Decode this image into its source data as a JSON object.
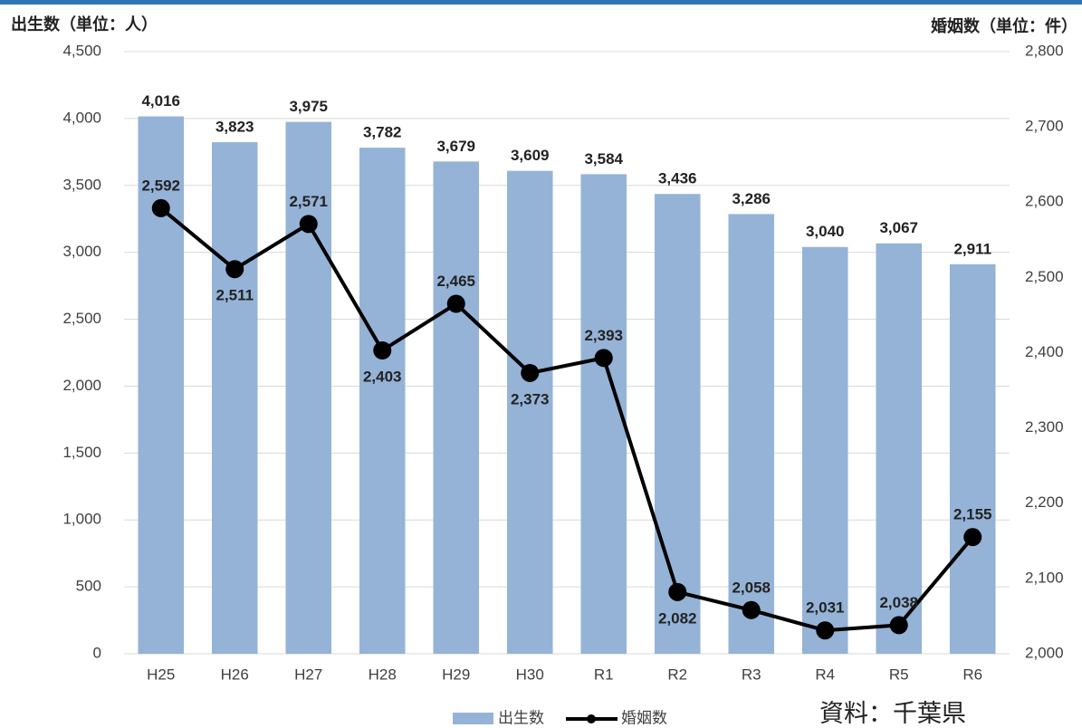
{
  "chart_data": {
    "type": "bar_line",
    "y_axis_label": "出生数（単位：人）",
    "y2_axis_label": "婚姻数（単位：件）",
    "source": "資料：千葉県",
    "categories": [
      "H25",
      "H26",
      "H27",
      "H28",
      "H29",
      "H30",
      "R1",
      "R2",
      "R3",
      "R4",
      "R5",
      "R6"
    ],
    "series": [
      {
        "name": "出生数",
        "type": "bar",
        "color": "#95b3d7",
        "values": [
          4016,
          3823,
          3975,
          3782,
          3679,
          3609,
          3584,
          3436,
          3286,
          3040,
          3067,
          2911
        ],
        "value_labels": [
          "4,016",
          "3,823",
          "3,975",
          "3,782",
          "3,679",
          "3,609",
          "3,584",
          "3,436",
          "3,286",
          "3,040",
          "3,067",
          "2,911"
        ]
      },
      {
        "name": "婚姻数",
        "type": "line",
        "axis": "y2",
        "color": "#000000",
        "values": [
          2592,
          2511,
          2571,
          2403,
          2465,
          2373,
          2393,
          2082,
          2058,
          2031,
          2038,
          2155
        ],
        "value_labels": [
          "2,592",
          "2,511",
          "2,571",
          "2,403",
          "2,465",
          "2,373",
          "2,393",
          "2,082",
          "2,058",
          "2,031",
          "2,038",
          "2,155"
        ]
      }
    ],
    "ylim": [
      0,
      4500
    ],
    "yticks": [
      0,
      500,
      {
        "value": 1000,
        "label": "1,000"
      },
      {
        "value": 1500,
        "label": "1,500"
      },
      {
        "value": 2000,
        "label": "2,000"
      },
      {
        "value": 2500,
        "label": "2,500"
      },
      {
        "value": 3000,
        "label": "3,000"
      },
      {
        "value": 3500,
        "label": "3,500"
      },
      {
        "value": 4000,
        "label": "4,000"
      },
      {
        "value": 4500,
        "label": "4,500"
      }
    ],
    "y2lim": [
      2000,
      2800
    ],
    "y2ticks": [
      {
        "value": 2000,
        "label": "2,000"
      },
      {
        "value": 2100,
        "label": "2,100"
      },
      {
        "value": 2200,
        "label": "2,200"
      },
      {
        "value": 2300,
        "label": "2,300"
      },
      {
        "value": 2400,
        "label": "2,400"
      },
      {
        "value": 2500,
        "label": "2,500"
      },
      {
        "value": 2600,
        "label": "2,600"
      },
      {
        "value": 2700,
        "label": "2,700"
      },
      {
        "value": 2800,
        "label": "2,800"
      }
    ],
    "grid": true
  }
}
